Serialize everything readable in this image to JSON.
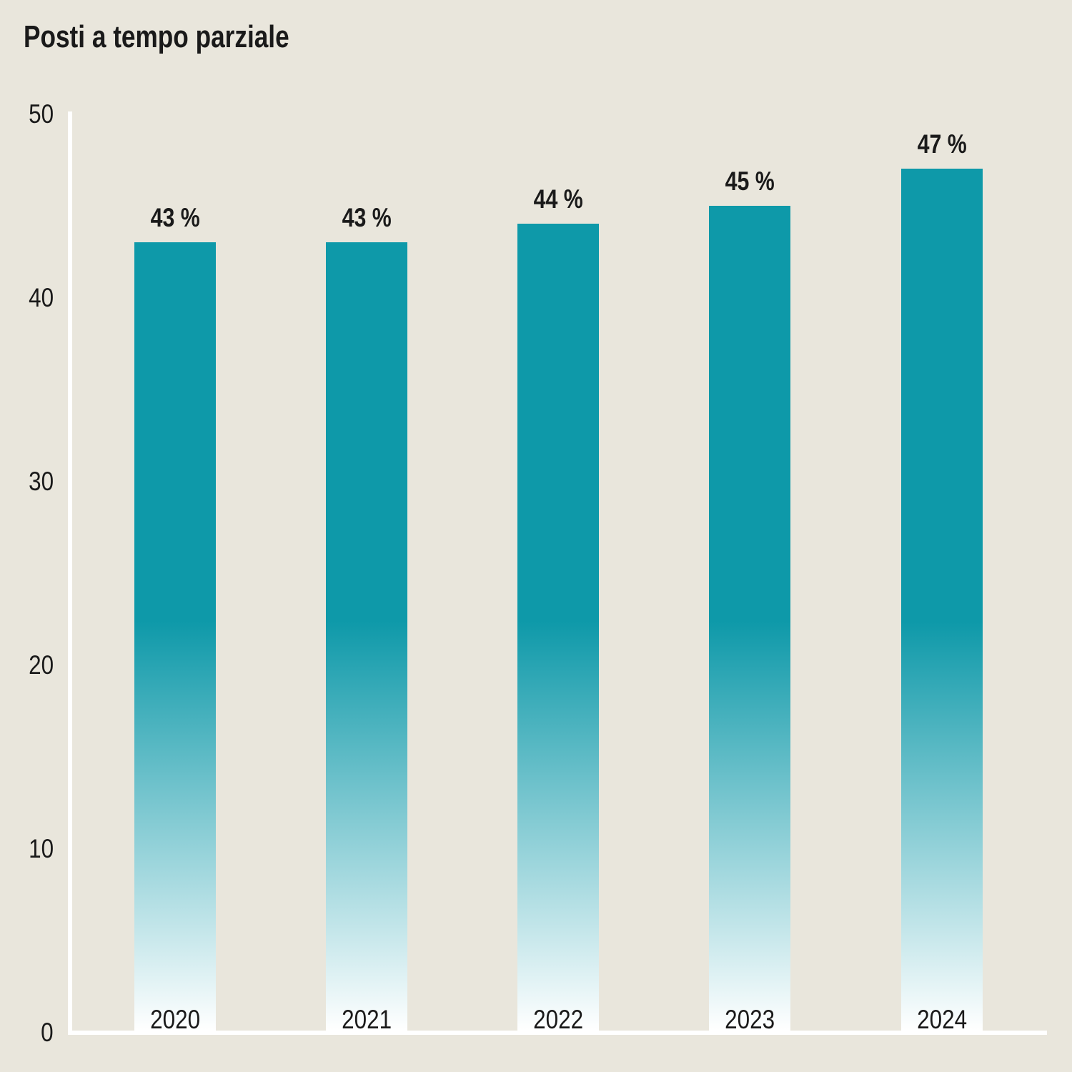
{
  "chart_data": {
    "type": "bar",
    "title": "Posti a tempo parziale",
    "categories": [
      "2020",
      "2021",
      "2022",
      "2023",
      "2024"
    ],
    "values": [
      43,
      43,
      44,
      45,
      47
    ],
    "bar_labels": [
      "43 %",
      "43 %",
      "44 %",
      "45 %",
      "47 %"
    ],
    "unit": "%",
    "ylim": [
      0,
      50
    ],
    "yticks": [
      0,
      10,
      20,
      30,
      40,
      50
    ],
    "xlabel": "",
    "ylabel": "",
    "grid": false,
    "legend": "none",
    "colors": {
      "bar": "#0e99a9",
      "bar_fade_to": "#ffffff",
      "axis": "#ffffff",
      "text": "#1a1a1a",
      "background": "#e9e6dc"
    }
  }
}
